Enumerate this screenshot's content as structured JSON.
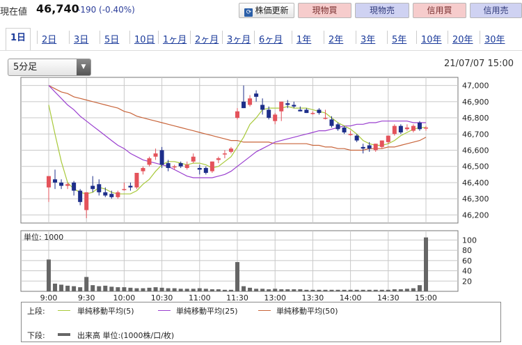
{
  "header": {
    "price_label": "現在値",
    "price_value": "46,740",
    "price_change": "-190 (-0.40%)",
    "refresh_label": "株価更新",
    "buy_spot": "現物買",
    "sell_spot": "現物売",
    "buy_margin": "信用買",
    "sell_margin": "信用売"
  },
  "tabs": [
    "1日",
    "2日",
    "3日",
    "5日",
    "10日",
    "1ヶ月",
    "2ヶ月",
    "3ヶ月",
    "6ヶ月",
    "1年",
    "2年",
    "3年",
    "5年",
    "10年",
    "20年",
    "30年"
  ],
  "active_tab": "1日",
  "interval": {
    "selected": "5分足"
  },
  "timestamp": "21/07/07 15:00",
  "colors": {
    "up": "#e4535b",
    "down": "#1d2e8a",
    "ma5": "#a8c93a",
    "ma25": "#9a3fcf",
    "ma50": "#c8643a",
    "volume": "#666666"
  },
  "chart_data": [
    {
      "type": "candlestick",
      "ylim": [
        46150,
        47050
      ],
      "y_ticks": [
        "47,000",
        "46,900",
        "46,800",
        "46,700",
        "46,600",
        "46,500",
        "46,400",
        "46,300",
        "46,200"
      ],
      "x_ticks": [
        "9:00",
        "9:30",
        "10:00",
        "10:30",
        "11:00",
        "11:30",
        "13:00",
        "13:30",
        "14:00",
        "14:30",
        "15:00"
      ],
      "candles": [
        [
          46370,
          46440,
          46280,
          46440
        ],
        [
          46420,
          46480,
          46360,
          46400
        ],
        [
          46400,
          46420,
          46360,
          46380
        ],
        [
          46380,
          46400,
          46360,
          46390
        ],
        [
          46400,
          46410,
          46320,
          46350
        ],
        [
          46350,
          46360,
          46260,
          46280
        ],
        [
          46230,
          46340,
          46180,
          46340
        ],
        [
          46380,
          46440,
          46340,
          46360
        ],
        [
          46390,
          46420,
          46320,
          46340
        ],
        [
          46340,
          46370,
          46310,
          46320
        ],
        [
          46330,
          46350,
          46300,
          46310
        ],
        [
          46310,
          46350,
          46300,
          46340
        ],
        [
          46360,
          46400,
          46350,
          46360
        ],
        [
          46380,
          46400,
          46350,
          46370
        ],
        [
          46370,
          46460,
          46360,
          46460
        ],
        [
          46470,
          46500,
          46450,
          46490
        ],
        [
          46510,
          46560,
          46500,
          46550
        ],
        [
          46560,
          46610,
          46540,
          46580
        ],
        [
          46600,
          46620,
          46490,
          46510
        ],
        [
          46520,
          46540,
          46470,
          46490
        ],
        [
          46500,
          46510,
          46480,
          46500
        ],
        [
          46520,
          46530,
          46490,
          46500
        ],
        [
          46490,
          46530,
          46480,
          46510
        ],
        [
          46530,
          46580,
          46520,
          46560
        ],
        [
          46490,
          46510,
          46450,
          46480
        ],
        [
          46490,
          46500,
          46450,
          46460
        ],
        [
          46470,
          46530,
          46460,
          46530
        ],
        [
          46540,
          46560,
          46520,
          46550
        ],
        [
          46580,
          46600,
          46550,
          46580
        ],
        [
          46590,
          46620,
          46580,
          46610
        ],
        [
          46800,
          46860,
          46790,
          46840
        ],
        [
          46900,
          47000,
          46860,
          46860
        ],
        [
          46880,
          46940,
          46870,
          46920
        ],
        [
          46950,
          46970,
          46900,
          46930
        ],
        [
          46880,
          46920,
          46820,
          46850
        ],
        [
          46850,
          46870,
          46790,
          46800
        ],
        [
          46780,
          46830,
          46760,
          46820
        ],
        [
          46840,
          46900,
          46780,
          46900
        ],
        [
          46890,
          46910,
          46860,
          46880
        ],
        [
          46880,
          46900,
          46860,
          46870
        ],
        [
          46850,
          46870,
          46840,
          46840
        ],
        [
          46850,
          46860,
          46830,
          46830
        ],
        [
          46830,
          46840,
          46820,
          46830
        ],
        [
          46850,
          46860,
          46820,
          46830
        ],
        [
          46800,
          46850,
          46790,
          46800
        ],
        [
          46790,
          46810,
          46740,
          46750
        ],
        [
          46760,
          46770,
          46720,
          46730
        ],
        [
          46740,
          46750,
          46700,
          46710
        ],
        [
          46700,
          46720,
          46690,
          46700
        ],
        [
          46690,
          46700,
          46650,
          46660
        ],
        [
          46620,
          46640,
          46580,
          46610
        ],
        [
          46630,
          46650,
          46590,
          46610
        ],
        [
          46600,
          46640,
          46590,
          46640
        ],
        [
          46620,
          46660,
          46610,
          46660
        ],
        [
          46650,
          46690,
          46640,
          46690
        ],
        [
          46700,
          46760,
          46690,
          46750
        ],
        [
          46750,
          46760,
          46700,
          46710
        ],
        [
          46730,
          46760,
          46720,
          46740
        ],
        [
          46720,
          46760,
          46710,
          46750
        ],
        [
          46770,
          46780,
          46720,
          46730
        ],
        [
          46740,
          46750,
          46720,
          46740
        ]
      ],
      "ma5": [
        46880,
        46700,
        46530,
        46400,
        46360,
        46340,
        46330,
        46340,
        46370,
        46360,
        46340,
        46330,
        46330,
        46330,
        46350,
        46390,
        46420,
        46470,
        46510,
        46530,
        46530,
        46520,
        46510,
        46520,
        46520,
        46510,
        46490,
        46500,
        46530,
        46560,
        46620,
        46680,
        46760,
        46800,
        46850,
        46860,
        46860,
        46860,
        46870,
        46860,
        46860,
        46860,
        46850,
        46840,
        46830,
        46800,
        46770,
        46750,
        46730,
        46700,
        46660,
        46640,
        46630,
        46630,
        46640,
        46660,
        46690,
        46710,
        46730,
        46740,
        46740
      ],
      "ma25": [
        47000,
        46960,
        46920,
        46880,
        46850,
        46810,
        46780,
        46750,
        46720,
        46690,
        46660,
        46630,
        46610,
        46580,
        46560,
        46540,
        46530,
        46520,
        46510,
        46500,
        46480,
        46460,
        46440,
        46430,
        46430,
        46430,
        46430,
        46440,
        46450,
        46470,
        46500,
        46530,
        46560,
        46590,
        46610,
        46630,
        46650,
        46660,
        46670,
        46680,
        46690,
        46700,
        46710,
        46720,
        46720,
        46730,
        46740,
        46750,
        46750,
        46760,
        46760,
        46770,
        46770,
        46780,
        46780,
        46780,
        46780,
        46780,
        46770,
        46770,
        46770
      ],
      "ma50": [
        47000,
        46980,
        46960,
        46950,
        46930,
        46920,
        46910,
        46900,
        46890,
        46880,
        46870,
        46860,
        46840,
        46830,
        46810,
        46800,
        46790,
        46780,
        46770,
        46760,
        46750,
        46740,
        46730,
        46720,
        46710,
        46700,
        46690,
        46680,
        46670,
        46660,
        46660,
        46650,
        46650,
        46650,
        46650,
        46650,
        46640,
        46640,
        46640,
        46640,
        46640,
        46640,
        46630,
        46630,
        46620,
        46620,
        46610,
        46610,
        46600,
        46600,
        46600,
        46610,
        46610,
        46610,
        46620,
        46620,
        46630,
        46640,
        46650,
        46660,
        46680
      ]
    },
    {
      "type": "bar",
      "unit_label": "単位: 1000",
      "ylim": [
        0,
        110
      ],
      "y_ticks": [
        "100",
        "80",
        "60",
        "40",
        "20"
      ],
      "x_ticks": [
        "9:00",
        "9:30",
        "10:00",
        "10:30",
        "11:00",
        "11:30",
        "13:00",
        "13:30",
        "14:00",
        "14:30",
        "15:00"
      ],
      "values": [
        62,
        15,
        13,
        11,
        10,
        8,
        28,
        12,
        10,
        11,
        9,
        8,
        8,
        7,
        6,
        6,
        7,
        8,
        7,
        6,
        6,
        5,
        5,
        5,
        6,
        5,
        4,
        4,
        3,
        3,
        57,
        10,
        7,
        5,
        5,
        4,
        5,
        4,
        4,
        4,
        4,
        3,
        3,
        3,
        3,
        3,
        3,
        3,
        3,
        3,
        3,
        3,
        3,
        3,
        3,
        4,
        4,
        5,
        6,
        12,
        105
      ]
    }
  ],
  "legend": {
    "upper_label": "上段:",
    "lower_label": "下段:",
    "ma5": "単純移動平均(5)",
    "ma25": "単純移動平均(25)",
    "ma50": "単純移動平均(50)",
    "volume": "出来高 単位:(1000株/口/枚)"
  }
}
